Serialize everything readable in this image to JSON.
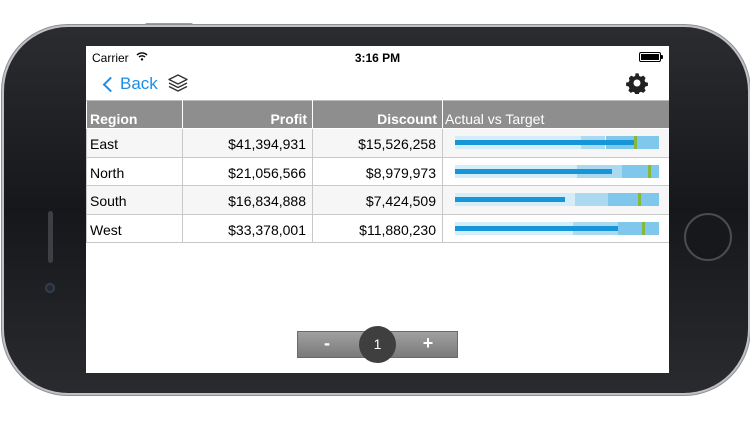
{
  "status_bar": {
    "carrier": "Carrier",
    "time": "3:16 PM"
  },
  "navbar": {
    "back_label": "Back",
    "icons": [
      "layers-icon",
      "gear-icon"
    ]
  },
  "table": {
    "columns": [
      "Region",
      "Profit",
      "Discount",
      "Actual vs Target"
    ],
    "rows": [
      {
        "region": "East",
        "profit": "$41,394,931",
        "discount": "$15,526,258"
      },
      {
        "region": "North",
        "profit": "$21,056,566",
        "discount": "$8,979,973"
      },
      {
        "region": "South",
        "profit": "$16,834,888",
        "discount": "$7,424,509"
      },
      {
        "region": "West",
        "profit": "$33,378,001",
        "discount": "$11,880,230"
      }
    ],
    "bullets": [
      {
        "bands": [
          0.62,
          0.74,
          1.0
        ],
        "actual": 0.88,
        "target": 0.88
      },
      {
        "bands": [
          0.6,
          0.82,
          1.0
        ],
        "actual": 0.77,
        "target": 0.95
      },
      {
        "bands": [
          0.59,
          0.75,
          1.0
        ],
        "actual": 0.54,
        "target": 0.9
      },
      {
        "bands": [
          0.58,
          0.8,
          1.0
        ],
        "actual": 0.8,
        "target": 0.92
      }
    ],
    "colors": {
      "header_bg": "#8e8e8e",
      "band_light": "#d5edf8",
      "band_mid": "#aad9f0",
      "band_dark": "#7fc8ec",
      "actual": "#1696d8",
      "target": "#86b83c"
    }
  },
  "pager": {
    "minus_label": "-",
    "page": "1",
    "plus_label": "+"
  },
  "accent_color": "#1c8ee5"
}
